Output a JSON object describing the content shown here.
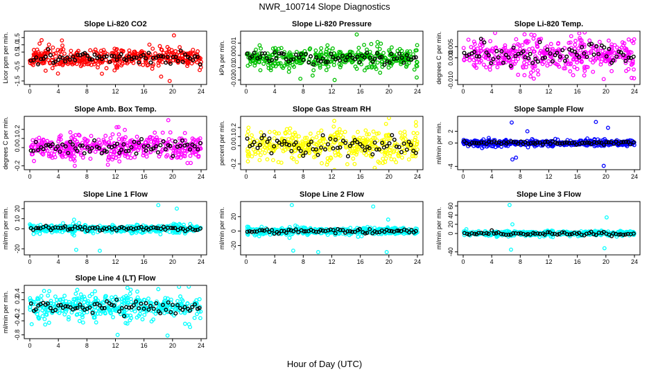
{
  "figure": {
    "title": "NWR_100714  Slope Diagnostics",
    "xlabel": "Hour of Day (UTC)"
  },
  "chart_data": [
    {
      "type": "scatter",
      "title": "Slope Li-820 CO2",
      "ylabel": "Licor ppm per min.",
      "color": "#ff0000",
      "xlim": [
        0,
        24
      ],
      "xticks": [
        0,
        4,
        8,
        12,
        16,
        20,
        24
      ],
      "ylim": [
        -1.6,
        1.8
      ],
      "yticks": [
        -1.5,
        -0.5,
        0.5,
        1.0,
        1.5
      ],
      "ytick_labels": [
        "-1.5",
        "-0.5",
        "0.5",
        "1.0",
        "1.5"
      ],
      "center": 0.1,
      "spread": 0.35,
      "outliers": [
        [
          4.5,
          1.3
        ],
        [
          20.2,
          1.65
        ],
        [
          19.6,
          -1.5
        ],
        [
          18.4,
          -1.2
        ]
      ],
      "seed": 11
    },
    {
      "type": "scatter",
      "title": "Slope Li-820 Pressure",
      "ylabel": "kPa per min.",
      "color": "#00c000",
      "xlim": [
        0,
        24
      ],
      "xticks": [
        0,
        4,
        8,
        12,
        16,
        20,
        24
      ],
      "ylim": [
        -0.022,
        0.018
      ],
      "yticks": [
        -0.02,
        -0.01,
        0.0,
        0.01
      ],
      "ytick_labels": [
        "-0.02",
        "-0.01",
        "0.00",
        "0.01"
      ],
      "center": -0.002,
      "spread": 0.004,
      "outliers": [
        [
          15.5,
          0.017
        ],
        [
          7.6,
          -0.019
        ],
        [
          23.9,
          -0.018
        ],
        [
          12.4,
          -0.02
        ]
      ],
      "seed": 23
    },
    {
      "type": "scatter",
      "title": "Slope Li-820 Temp.",
      "ylabel": "degrees C per min.",
      "color": "#ff00ff",
      "xlim": [
        0,
        24
      ],
      "xticks": [
        0,
        4,
        8,
        12,
        16,
        20,
        24
      ],
      "ylim": [
        -0.011,
        0.011
      ],
      "yticks": [
        -0.01,
        0.0,
        0.005
      ],
      "ytick_labels": [
        "-0.010",
        "0.000",
        "0.005"
      ],
      "center": 0.001,
      "spread": 0.0035,
      "outliers": [
        [
          8.6,
          0.0105
        ],
        [
          19.7,
          -0.0095
        ],
        [
          23.6,
          -0.009
        ]
      ],
      "seed": 37
    },
    {
      "type": "scatter",
      "title": "Slope Amb. Box Temp.",
      "ylabel": "degrees C per min.",
      "color": "#ff00ff",
      "xlim": [
        0,
        24
      ],
      "xticks": [
        0,
        4,
        8,
        12,
        16,
        20,
        24
      ],
      "ylim": [
        -0.22,
        0.32
      ],
      "yticks": [
        -0.2,
        0.0,
        0.1,
        0.2
      ],
      "ytick_labels": [
        "-0.2",
        "0.0",
        "0.1",
        "0.2"
      ],
      "center": 0.0,
      "spread": 0.07,
      "outliers": [
        [
          6.3,
          -0.2
        ],
        [
          19.4,
          0.3
        ],
        [
          22.1,
          -0.17
        ]
      ],
      "seed": 41
    },
    {
      "type": "scatter",
      "title": "Slope Gas Stream RH",
      "ylabel": "percent per min.",
      "color": "#ffff00",
      "xlim": [
        0,
        24
      ],
      "xticks": [
        0,
        4,
        8,
        12,
        16,
        20,
        24
      ],
      "ylim": [
        -0.24,
        0.3
      ],
      "yticks": [
        -0.2,
        0.0,
        0.1,
        0.2
      ],
      "ytick_labels": [
        "-0.2",
        "0.0",
        "0.1",
        "0.2"
      ],
      "center": 0.0,
      "spread": 0.09,
      "outliers": [
        [
          23.8,
          0.26
        ],
        [
          23.8,
          0.22
        ],
        [
          19.6,
          0.24
        ]
      ],
      "seed": 53
    },
    {
      "type": "scatter",
      "title": "Slope Sample Flow",
      "ylabel": "ml/min per min.",
      "color": "#0000ff",
      "xlim": [
        0,
        24
      ],
      "xticks": [
        0,
        4,
        8,
        12,
        16,
        20,
        24
      ],
      "ylim": [
        -4.2,
        4.2
      ],
      "yticks": [
        -4,
        0,
        2
      ],
      "ytick_labels": [
        "-4",
        "0",
        "2"
      ],
      "center": 0.0,
      "spread": 0.25,
      "outliers": [
        [
          6.8,
          3.5
        ],
        [
          9.0,
          2.0
        ],
        [
          7.4,
          -2.5
        ],
        [
          18.6,
          3.6
        ],
        [
          19.7,
          -3.9
        ],
        [
          20.3,
          2.6
        ],
        [
          6.9,
          -2.8
        ]
      ],
      "seed": 67
    },
    {
      "type": "scatter",
      "title": "Slope Line 1 Flow",
      "ylabel": "ml/min per min.",
      "color": "#00ffff",
      "xlim": [
        0,
        24
      ],
      "xticks": [
        0,
        4,
        8,
        12,
        16,
        20,
        24
      ],
      "ylim": [
        -24,
        25
      ],
      "yticks": [
        -20,
        0,
        10,
        20
      ],
      "ytick_labels": [
        "-20",
        "0",
        "10",
        "20"
      ],
      "center": 0.0,
      "spread": 2.0,
      "outliers": [
        [
          6.5,
          -21
        ],
        [
          9.8,
          -22
        ],
        [
          18.0,
          23.5
        ],
        [
          20.6,
          20
        ],
        [
          6.2,
          9
        ]
      ],
      "seed": 71
    },
    {
      "type": "scatter",
      "title": "Slope Line 2 Flow",
      "ylabel": "ml/min per min.",
      "color": "#00ffff",
      "xlim": [
        0,
        24
      ],
      "xticks": [
        0,
        4,
        8,
        12,
        16,
        20,
        24
      ],
      "ylim": [
        -30,
        38
      ],
      "yticks": [
        -20,
        0,
        20
      ],
      "ytick_labels": [
        "-20",
        "0",
        "20"
      ],
      "center": 0.0,
      "spread": 2.5,
      "outliers": [
        [
          6.6,
          -27
        ],
        [
          6.4,
          36
        ],
        [
          10.1,
          -29
        ],
        [
          19.7,
          -29
        ],
        [
          17.8,
          34
        ],
        [
          19.9,
          16
        ]
      ],
      "seed": 83
    },
    {
      "type": "scatter",
      "title": "Slope Line 3 Flow",
      "ylabel": "ml/min per min.",
      "color": "#00ffff",
      "xlim": [
        0,
        24
      ],
      "xticks": [
        0,
        4,
        8,
        12,
        16,
        20,
        24
      ],
      "ylim": [
        -42,
        65
      ],
      "yticks": [
        -40,
        0,
        20,
        40,
        60
      ],
      "ytick_labels": [
        "-40",
        "0",
        "20",
        "40",
        "60"
      ],
      "center": 0.0,
      "spread": 3.0,
      "outliers": [
        [
          6.5,
          62
        ],
        [
          6.7,
          -35
        ],
        [
          20.1,
          35
        ],
        [
          19.8,
          -32
        ],
        [
          6.9,
          20
        ]
      ],
      "seed": 97
    },
    {
      "type": "scatter",
      "title": "Slope Line 4 (LT) Flow",
      "ylabel": "ml/min per min.",
      "color": "#00ffff",
      "xlim": [
        0,
        24
      ],
      "xticks": [
        0,
        4,
        8,
        12,
        16,
        20,
        24
      ],
      "ylim": [
        -0.85,
        0.55
      ],
      "yticks": [
        -0.8,
        -0.4,
        -0.2,
        0.2,
        0.4
      ],
      "ytick_labels": [
        "-0.8",
        "-0.4",
        "-0.2",
        "0.2",
        "0.4"
      ],
      "center": 0.0,
      "spread": 0.18,
      "outliers": [
        [
          12.3,
          -0.8
        ],
        [
          19.3,
          -0.82
        ],
        [
          18.0,
          0.5
        ],
        [
          2.0,
          0.45
        ]
      ],
      "seed": 101
    }
  ]
}
